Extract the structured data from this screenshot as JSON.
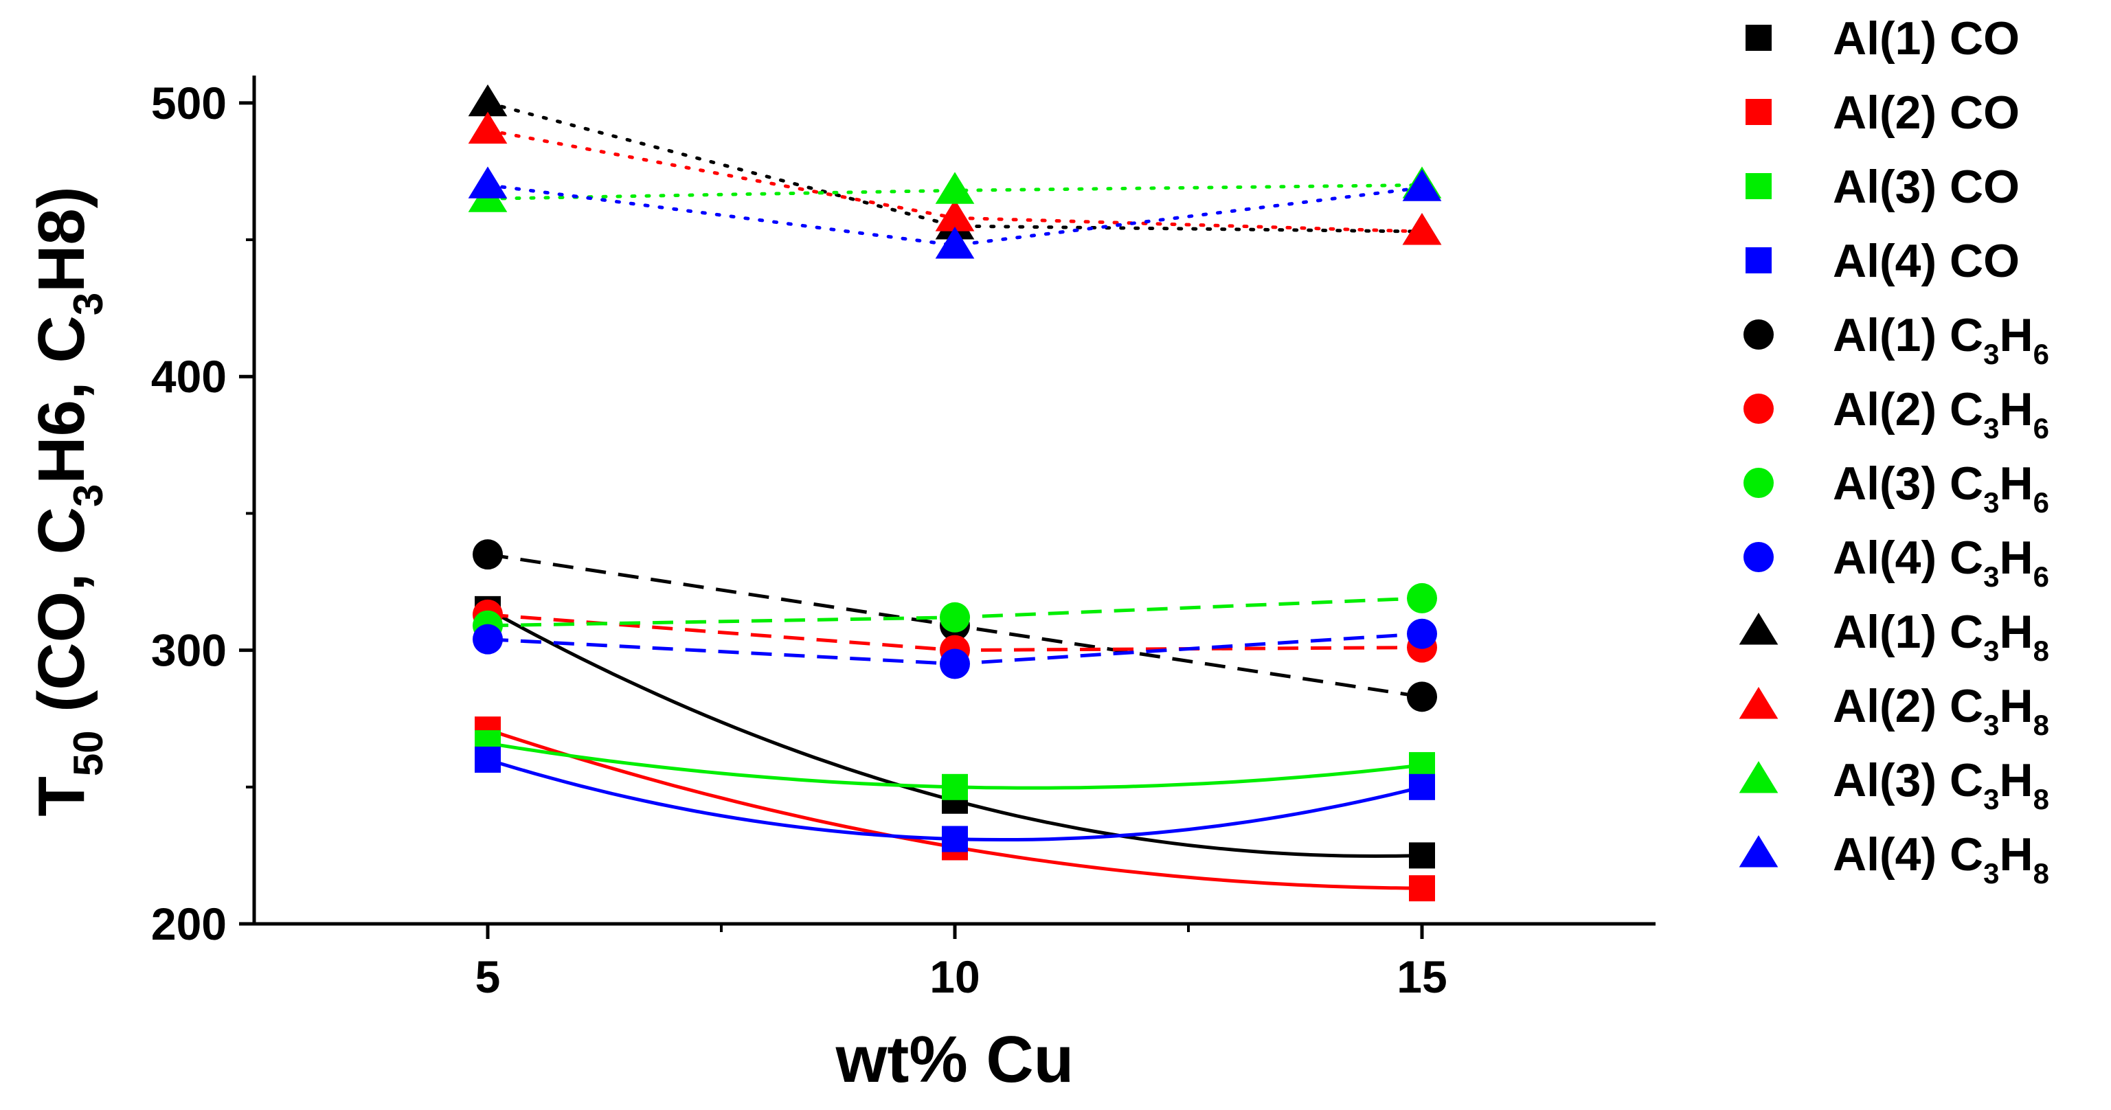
{
  "chart_data": {
    "type": "scatter",
    "title": "",
    "xlabel": "wt% Cu",
    "ylabel": {
      "base": "T",
      "sub": "50",
      "rest_parts": [
        {
          "t": " (CO, C",
          "sub": false
        },
        {
          "t": "3",
          "sub": true
        },
        {
          "t": "H6, C",
          "sub": false
        },
        {
          "t": "3",
          "sub": true
        },
        {
          "t": "H8)",
          "sub": false
        }
      ]
    },
    "xlim": [
      2.5,
      17.5
    ],
    "ylim": [
      200,
      510
    ],
    "x_ticks": [
      5,
      10,
      15
    ],
    "x_tick_labels": [
      "5",
      "10",
      "15"
    ],
    "x_minor_ticks": [
      7.5,
      12.5
    ],
    "y_ticks": [
      200,
      300,
      400,
      500
    ],
    "y_tick_labels": [
      "200",
      "300",
      "400",
      "500"
    ],
    "y_minor_ticks": [
      250,
      350,
      450
    ],
    "grid": false,
    "legend_position": "right",
    "colors": {
      "Al(1)": "#000000",
      "Al(2)": "#ff0000",
      "Al(3)": "#00ee00",
      "Al(4)": "#0000ff"
    },
    "series": [
      {
        "name": "Al(1) CO",
        "legend": [
          {
            "t": "Al(1) CO",
            "sub": false
          }
        ],
        "catalyst": "Al(1)",
        "marker": "square",
        "line": "solid",
        "x": [
          5,
          10,
          15
        ],
        "y": [
          315,
          245,
          225
        ]
      },
      {
        "name": "Al(2) CO",
        "legend": [
          {
            "t": "Al(2) CO",
            "sub": false
          }
        ],
        "catalyst": "Al(2)",
        "marker": "square",
        "line": "solid",
        "x": [
          5,
          10,
          15
        ],
        "y": [
          271,
          228,
          213
        ]
      },
      {
        "name": "Al(3) CO",
        "legend": [
          {
            "t": "Al(3) CO",
            "sub": false
          }
        ],
        "catalyst": "Al(3)",
        "marker": "square",
        "line": "solid",
        "x": [
          5,
          10,
          15
        ],
        "y": [
          266,
          250,
          258
        ]
      },
      {
        "name": "Al(4) CO",
        "legend": [
          {
            "t": "Al(4) CO",
            "sub": false
          }
        ],
        "catalyst": "Al(4)",
        "marker": "square",
        "line": "solid",
        "x": [
          5,
          10,
          15
        ],
        "y": [
          260,
          231,
          250
        ]
      },
      {
        "name": "Al(1) C3H6",
        "legend": [
          {
            "t": "Al(1) C",
            "sub": false
          },
          {
            "t": "3",
            "sub": true
          },
          {
            "t": "H",
            "sub": false
          },
          {
            "t": "6",
            "sub": true
          }
        ],
        "catalyst": "Al(1)",
        "marker": "circle",
        "line": "dashed",
        "x": [
          5,
          10,
          15
        ],
        "y": [
          335,
          309,
          283
        ]
      },
      {
        "name": "Al(2) C3H6",
        "legend": [
          {
            "t": "Al(2) C",
            "sub": false
          },
          {
            "t": "3",
            "sub": true
          },
          {
            "t": "H",
            "sub": false
          },
          {
            "t": "6",
            "sub": true
          }
        ],
        "catalyst": "Al(2)",
        "marker": "circle",
        "line": "dashed",
        "x": [
          5,
          10,
          15
        ],
        "y": [
          313,
          300,
          301
        ]
      },
      {
        "name": "Al(3) C3H6",
        "legend": [
          {
            "t": "Al(3) C",
            "sub": false
          },
          {
            "t": "3",
            "sub": true
          },
          {
            "t": "H",
            "sub": false
          },
          {
            "t": "6",
            "sub": true
          }
        ],
        "catalyst": "Al(3)",
        "marker": "circle",
        "line": "dashed",
        "x": [
          5,
          10,
          15
        ],
        "y": [
          309,
          312,
          319
        ]
      },
      {
        "name": "Al(4) C3H6",
        "legend": [
          {
            "t": "Al(4) C",
            "sub": false
          },
          {
            "t": "3",
            "sub": true
          },
          {
            "t": "H",
            "sub": false
          },
          {
            "t": "6",
            "sub": true
          }
        ],
        "catalyst": "Al(4)",
        "marker": "circle",
        "line": "dashed",
        "x": [
          5,
          10,
          15
        ],
        "y": [
          304,
          295,
          306
        ]
      },
      {
        "name": "Al(1) C3H8",
        "legend": [
          {
            "t": "Al(1) C",
            "sub": false
          },
          {
            "t": "3",
            "sub": true
          },
          {
            "t": "H",
            "sub": false
          },
          {
            "t": "8",
            "sub": true
          }
        ],
        "catalyst": "Al(1)",
        "marker": "triangle",
        "line": "dotted",
        "x": [
          5,
          10,
          15
        ],
        "y": [
          500,
          455,
          453
        ]
      },
      {
        "name": "Al(2) C3H8",
        "legend": [
          {
            "t": "Al(2) C",
            "sub": false
          },
          {
            "t": "3",
            "sub": true
          },
          {
            "t": "H",
            "sub": false
          },
          {
            "t": "8",
            "sub": true
          }
        ],
        "catalyst": "Al(2)",
        "marker": "triangle",
        "line": "dotted",
        "x": [
          5,
          10,
          15
        ],
        "y": [
          490,
          458,
          453
        ]
      },
      {
        "name": "Al(3) C3H8",
        "legend": [
          {
            "t": "Al(3) C",
            "sub": false
          },
          {
            "t": "3",
            "sub": true
          },
          {
            "t": "H",
            "sub": false
          },
          {
            "t": "8",
            "sub": true
          }
        ],
        "catalyst": "Al(3)",
        "marker": "triangle",
        "line": "dotted",
        "x": [
          5,
          10,
          15
        ],
        "y": [
          465,
          468,
          470
        ]
      },
      {
        "name": "Al(4) C3H8",
        "legend": [
          {
            "t": "Al(4) C",
            "sub": false
          },
          {
            "t": "3",
            "sub": true
          },
          {
            "t": "H",
            "sub": false
          },
          {
            "t": "8",
            "sub": true
          }
        ],
        "catalyst": "Al(4)",
        "marker": "triangle",
        "line": "dotted",
        "x": [
          5,
          10,
          15
        ],
        "y": [
          470,
          448,
          469
        ]
      }
    ]
  }
}
